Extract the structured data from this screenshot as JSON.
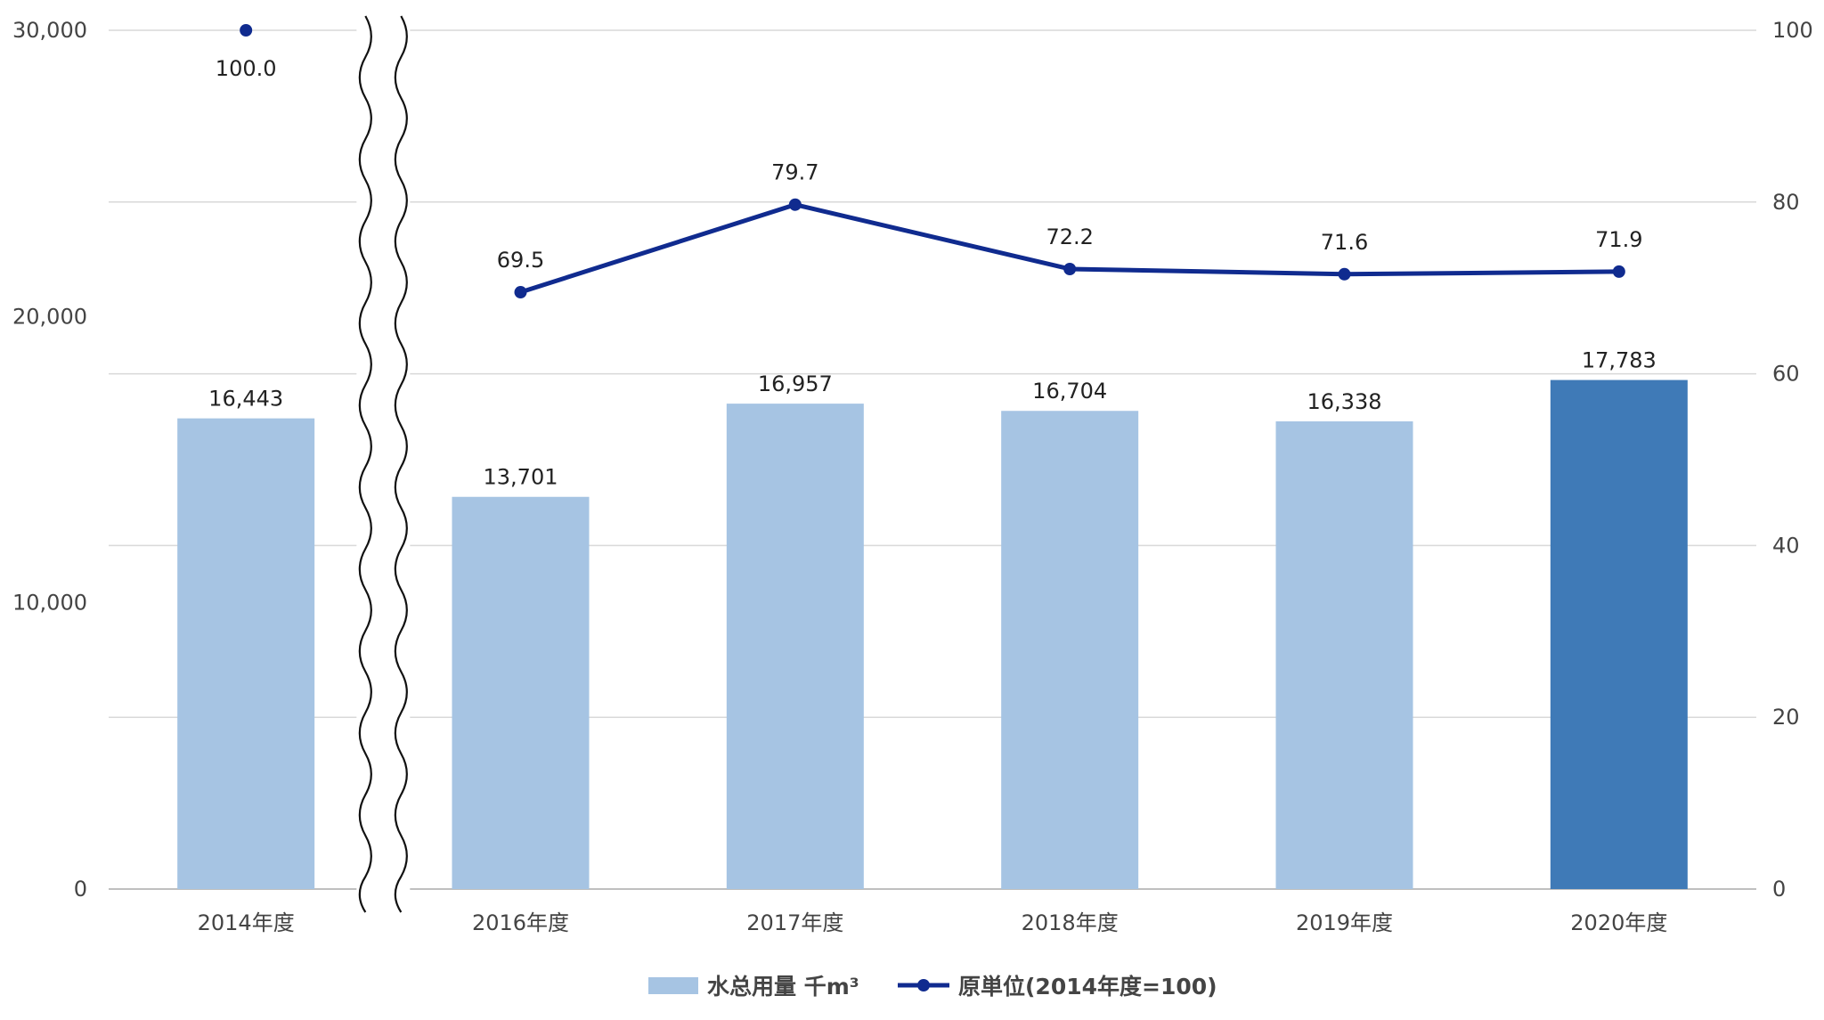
{
  "chart_data": {
    "type": "bar",
    "title": "",
    "categories": [
      "2014年度",
      "2016年度",
      "2017年度",
      "2018年度",
      "2019年度",
      "2020年度"
    ],
    "series": [
      {
        "name": "水总用量 千m³",
        "kind": "bar",
        "axis": "left",
        "values": [
          16443,
          13701,
          16957,
          16704,
          16338,
          17783
        ],
        "labels": [
          "16,443",
          "13,701",
          "16,957",
          "16,704",
          "16,338",
          "17,783"
        ],
        "color": "#a6c4e3",
        "highlight_color": "#3f7ab7",
        "highlight_index": 5
      },
      {
        "name": "原単位(2014年度=100)",
        "kind": "line",
        "axis": "right",
        "values": [
          100.0,
          69.5,
          79.7,
          72.2,
          71.6,
          71.9
        ],
        "labels": [
          "100.0",
          "69.5",
          "79.7",
          "72.2",
          "71.6",
          "71.9"
        ],
        "color": "#102b8f",
        "line_starts_at_index": 1
      }
    ],
    "y_left": {
      "ylim": [
        0,
        30000
      ],
      "ticks": [
        0,
        10000,
        20000,
        30000
      ],
      "tick_labels": [
        "0",
        "10,000",
        "20,000",
        "30,000"
      ]
    },
    "y_right": {
      "ylim": [
        0,
        100
      ],
      "ticks": [
        0,
        20,
        40,
        60,
        80,
        100
      ],
      "tick_labels": [
        "0",
        "20",
        "40",
        "60",
        "80",
        "100"
      ]
    },
    "grid": true,
    "axis_break_after_index": 0,
    "legend": {
      "position": "bottom",
      "entries": [
        "水总用量 千m³",
        "原単位(2014年度=100)"
      ]
    },
    "colors": {
      "grid": "#d9d9d9",
      "axis": "#bfbfbf",
      "text": "#444444"
    }
  }
}
